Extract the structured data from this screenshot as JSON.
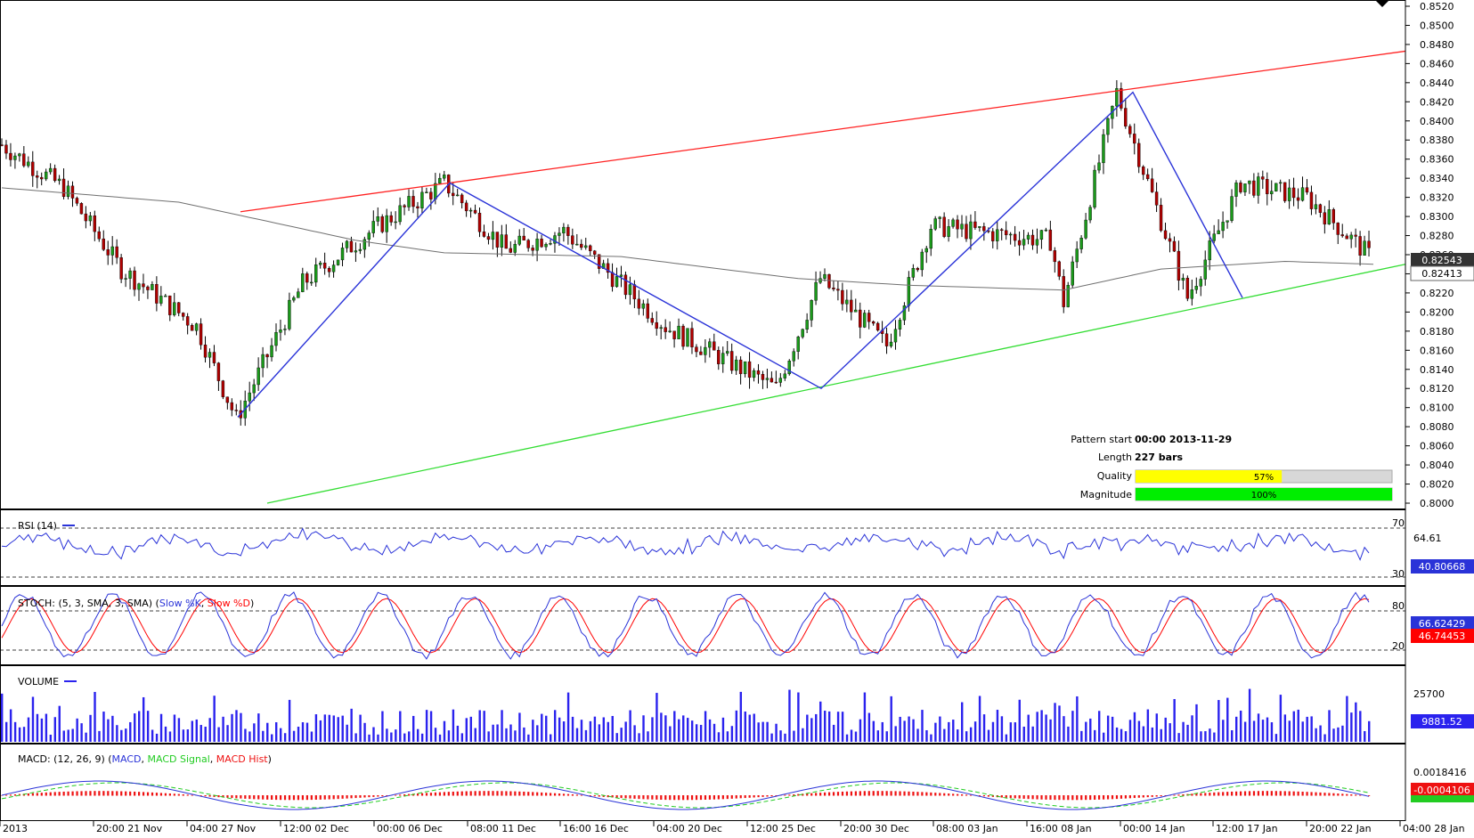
{
  "price_axis": {
    "ticks": [
      "0.8520",
      "0.8500",
      "0.8480",
      "0.8460",
      "0.8440",
      "0.8420",
      "0.8400",
      "0.8380",
      "0.8360",
      "0.8340",
      "0.8320",
      "0.8300",
      "0.8280",
      "0.8260",
      "0.8240",
      "0.8220",
      "0.8200",
      "0.8180",
      "0.8160",
      "0.8140",
      "0.8120",
      "0.8100",
      "0.8080",
      "0.8060",
      "0.8040",
      "0.8020",
      "0.8000"
    ],
    "current_price": "0.82543",
    "ma_price": "0.82413"
  },
  "time_axis": {
    "labels": [
      "2013",
      "20:00 21 Nov",
      "04:00 27 Nov",
      "12:00 02 Dec",
      "00:00 06 Dec",
      "08:00 11 Dec",
      "16:00 16 Dec",
      "04:00 20 Dec",
      "12:00 25 Dec",
      "20:00 30 Dec",
      "08:00 03 Jan",
      "16:00 08 Jan",
      "00:00 14 Jan",
      "12:00 17 Jan",
      "20:00 22 Jan",
      "04:00 28 Jan"
    ]
  },
  "pattern_info": {
    "start_label": "Pattern start",
    "start_value": "00:00 2013-11-29",
    "length_label": "Length",
    "length_value": "227 bars",
    "quality_label": "Quality",
    "quality_value": "57%",
    "quality_fraction": 0.57,
    "magnitude_label": "Magnitude",
    "magnitude_value": "100%",
    "magnitude_fraction": 1.0
  },
  "indicators": {
    "rsi": {
      "label": "RSI (14)",
      "level_high": "70",
      "level_low": "30",
      "tick": "64.61",
      "value": "40.80668"
    },
    "stoch": {
      "label_prefix": "STOCH: (5, 3, SMA, 3, SMA) (",
      "label_k": "Slow %K",
      "label_sep": ", ",
      "label_d": "Slow %D",
      "label_suffix": ")",
      "level_high": "80",
      "level_low": "20",
      "value_k": "66.62429",
      "value_d": "46.74453"
    },
    "volume": {
      "label": "VOLUME",
      "tick": "25700",
      "value": "9881.52"
    },
    "macd": {
      "label_prefix": "MACD: (12, 26, 9) (",
      "label_macd": "MACD",
      "label_sep1": ", ",
      "label_signal": "MACD Signal",
      "label_sep2": ", ",
      "label_hist": "MACD Hist",
      "label_suffix": ")",
      "tick": "0.0018416",
      "value": "-0.0004106"
    }
  },
  "colors": {
    "up_candle": "#1a9a1a",
    "down_candle": "#b00000",
    "resistance": "#ff2020",
    "support": "#33dd33",
    "pattern": "#2a33d8",
    "ma": "#707070",
    "rsi": "#2a33d8",
    "stoch_k": "#2a33d8",
    "stoch_d": "#ff0000",
    "volume": "#2a22ee",
    "macd": "#2a33d8",
    "signal": "#22cc22",
    "hist": "#ee1111",
    "quality_fill": "#ffff00",
    "magnitude_fill": "#00ee00"
  },
  "chart_data": {
    "type": "candlestick",
    "instrument_scale": {
      "ylim": [
        0.8,
        0.852
      ]
    },
    "pattern_points": [
      {
        "time": "04:00 27 Nov",
        "price": 0.809
      },
      {
        "time": "06 Dec",
        "price": 0.8335
      },
      {
        "time": "27 Dec",
        "price": 0.812
      },
      {
        "time": "14 Jan",
        "price": 0.843
      },
      {
        "time": "17 Jan",
        "price": 0.8215
      }
    ],
    "resistance_line": {
      "from_price": 0.8305,
      "to_price": 0.8473
    },
    "support_line": {
      "from_price": 0.8,
      "to_price": 0.825
    }
  }
}
